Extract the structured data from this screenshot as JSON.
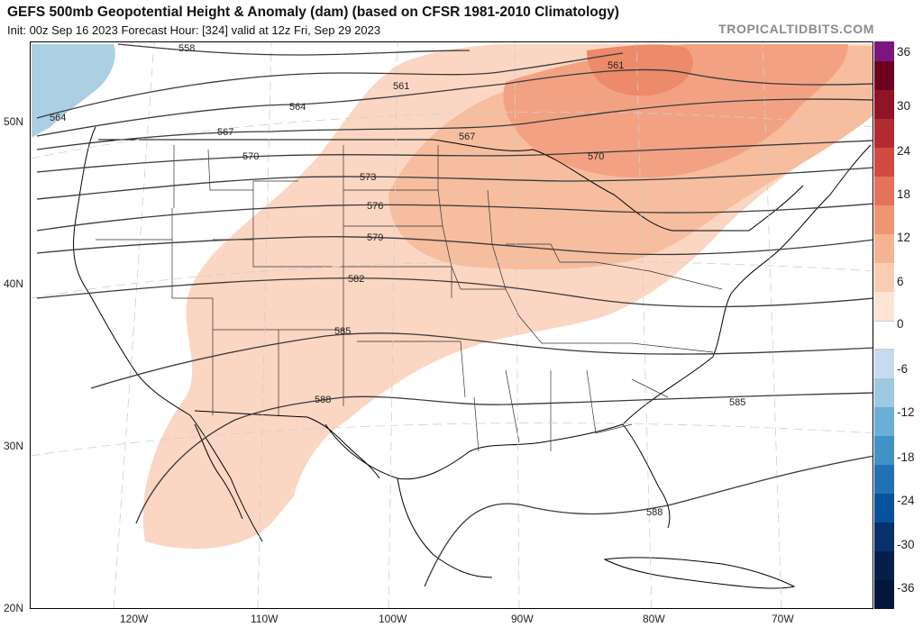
{
  "header": {
    "title": "GEFS 500mb Geopotential Height & Anomaly (dam) (based on CFSR 1981-2010 Climatology)",
    "subtitle": "Init: 00z Sep 16 2023   Forecast Hour: [324]   valid at 12z Fri, Sep 29 2023",
    "site": "TROPICALTIDBITS.COM"
  },
  "map": {
    "lat_labels": [
      "50N",
      "40N",
      "30N",
      "20N"
    ],
    "lon_labels": [
      "120W",
      "110W",
      "100W",
      "90W",
      "80W",
      "70W"
    ],
    "contour_labels": [
      "558",
      "561",
      "561",
      "564",
      "564",
      "567",
      "567",
      "570",
      "570",
      "573",
      "576",
      "579",
      "582",
      "585",
      "585",
      "588",
      "588"
    ]
  },
  "colorbar": {
    "ticks": [
      "36",
      "30",
      "24",
      "18",
      "12",
      "6",
      "0",
      "-6",
      "-12",
      "-18",
      "-24",
      "-30",
      "-36"
    ],
    "colors": {
      "positive": [
        "#fbe4d6",
        "#f9cdb4",
        "#f5b393",
        "#ef9572",
        "#e4735a",
        "#d04b41",
        "#b22b32",
        "#901428",
        "#6d0020"
      ],
      "negative": [
        "#c6dbef",
        "#9ecae1",
        "#6baed6",
        "#4292c6",
        "#2171b5",
        "#08519c",
        "#08306b",
        "#061f4a",
        "#04163a"
      ],
      "top_cap": "#7a1680"
    }
  }
}
